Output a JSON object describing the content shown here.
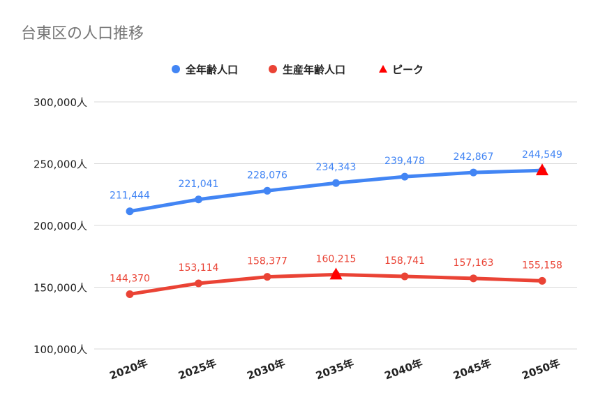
{
  "chart_data": {
    "type": "line",
    "title": "台東区の人口推移",
    "categories": [
      "2020年",
      "2025年",
      "2030年",
      "2035年",
      "2040年",
      "2045年",
      "2050年"
    ],
    "y_ticks": [
      "300,000人",
      "250,000人",
      "200,000人",
      "150,000人",
      "100,000人"
    ],
    "ylim": [
      100000,
      300000
    ],
    "grid": true,
    "legend_position": "top",
    "series": [
      {
        "name": "全年齢人口",
        "color": "#4285f4",
        "values": [
          211444,
          221041,
          228076,
          234343,
          239478,
          242867,
          244549
        ],
        "labels": [
          "211,444",
          "221,041",
          "228,076",
          "234,343",
          "239,478",
          "242,867",
          "244,549"
        ],
        "peak_index": 6
      },
      {
        "name": "生産年齢人口",
        "color": "#ea4335",
        "values": [
          144370,
          153114,
          158377,
          160215,
          158741,
          157163,
          155158
        ],
        "labels": [
          "144,370",
          "153,114",
          "158,377",
          "160,215",
          "158,741",
          "157,163",
          "155,158"
        ],
        "peak_index": 3
      }
    ],
    "peak_legend": {
      "name": "ピーク",
      "color": "#ff0000",
      "icon": "triangle-icon"
    }
  }
}
